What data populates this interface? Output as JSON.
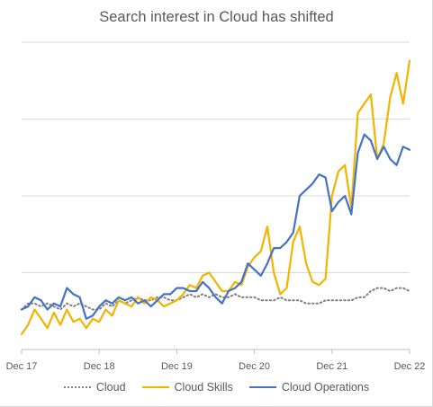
{
  "chart_data": {
    "type": "line",
    "title": "Search interest in Cloud has shifted",
    "xlabel": "",
    "ylabel": "",
    "x_ticks": [
      "Dec 17",
      "Dec 18",
      "Dec 19",
      "Dec 20",
      "Dec 21",
      "Dec 22"
    ],
    "x_range": [
      0,
      60
    ],
    "ylim": [
      0,
      100
    ],
    "y_gridlines": [
      25,
      50,
      75,
      100
    ],
    "y_tick_labels_shown": false,
    "legend": "bottom",
    "x": [
      0,
      1,
      2,
      3,
      4,
      5,
      6,
      7,
      8,
      9,
      10,
      11,
      12,
      13,
      14,
      15,
      16,
      17,
      18,
      19,
      20,
      21,
      22,
      23,
      24,
      25,
      26,
      27,
      28,
      29,
      30,
      31,
      32,
      33,
      34,
      35,
      36,
      37,
      38,
      39,
      40,
      41,
      42,
      43,
      44,
      45,
      46,
      47,
      48,
      49,
      50,
      51,
      52,
      53,
      54,
      55,
      56,
      57,
      58,
      59,
      60
    ],
    "series": [
      {
        "name": "Cloud",
        "color": "#7f7f7f",
        "style": "dotted",
        "values": [
          13,
          15,
          15,
          14,
          15,
          14,
          13,
          15,
          14,
          15,
          14,
          13,
          13,
          15,
          14,
          16,
          15,
          16,
          17,
          16,
          16,
          17,
          17,
          16,
          16,
          17,
          18,
          17,
          18,
          17,
          18,
          17,
          17,
          18,
          17,
          17,
          17,
          16,
          16,
          16,
          17,
          16,
          16,
          16,
          15,
          15,
          15,
          16,
          16,
          16,
          16,
          16,
          17,
          17,
          19,
          20,
          20,
          19,
          20,
          20,
          19
        ]
      },
      {
        "name": "Cloud Skills",
        "color": "#f2b400",
        "style": "solid",
        "values": [
          5,
          8,
          13,
          10,
          7,
          12,
          8,
          13,
          9,
          10,
          7,
          10,
          9,
          13,
          11,
          16,
          15,
          14,
          17,
          15,
          17,
          16,
          14,
          15,
          16,
          18,
          21,
          20,
          24,
          25,
          22,
          19,
          19,
          22,
          21,
          27,
          30,
          32,
          40,
          25,
          18,
          20,
          35,
          40,
          28,
          22,
          21,
          23,
          50,
          58,
          60,
          46,
          77,
          80,
          83,
          62,
          67,
          82,
          90,
          80,
          94
        ]
      },
      {
        "name": "Cloud Operations",
        "color": "#4472c4",
        "style": "solid",
        "values": [
          13,
          14,
          17,
          16,
          13,
          15,
          14,
          20,
          18,
          17,
          10,
          11,
          14,
          16,
          15,
          17,
          16,
          17,
          15,
          16,
          14,
          16,
          18,
          18,
          20,
          20,
          19,
          19,
          22,
          20,
          17,
          15,
          19,
          20,
          22,
          28,
          26,
          24,
          28,
          33,
          33,
          35,
          38,
          50,
          52,
          54,
          57,
          56,
          45,
          48,
          50,
          44,
          64,
          70,
          68,
          62,
          66,
          62,
          60,
          66,
          65
        ]
      }
    ]
  }
}
